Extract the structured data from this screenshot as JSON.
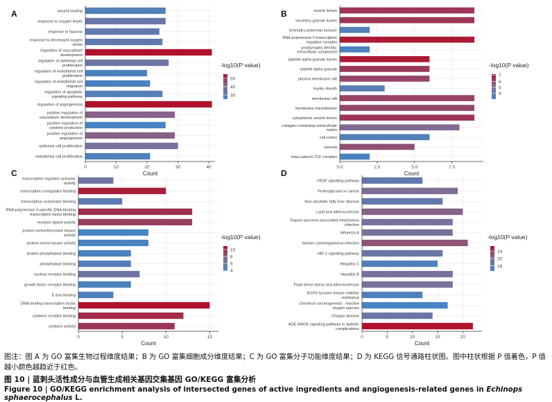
{
  "charts": [
    {
      "panel": "A",
      "legend_title": "-log10(P value)",
      "xlabel": "Count",
      "xticks": [
        0,
        10,
        20,
        30,
        40
      ],
      "xlim": [
        0,
        42
      ],
      "color_range": [
        25,
        55
      ],
      "legend_ticks": [
        50,
        40,
        30
      ],
      "categories": [
        "wound healing",
        "response to oxygen levels",
        "response to hypoxia",
        "response to decreased oxygen levels",
        "regulation of vasculature development",
        "regulation of epithelial cell proliferation",
        "regulation of endothelial cell proliferation",
        "regulation of endothelial cell migration",
        "regulation of apoptotic signaling pathway",
        "regulation of angiogenesis",
        "positive regulation of vasculature development",
        "positive regulation of cytokine production",
        "positive regulation of angiogenesis",
        "epithelial cell proliferation",
        "endothelial cell proliferation"
      ],
      "values": [
        26,
        26,
        24,
        25,
        41,
        27,
        20,
        21,
        25,
        41,
        29,
        26,
        29,
        30,
        21
      ],
      "colors": [
        30,
        35,
        33,
        33,
        55,
        36,
        28,
        28,
        30,
        55,
        42,
        27,
        42,
        38,
        29
      ]
    },
    {
      "panel": "B",
      "legend_title": "-log10(P value)",
      "xlabel": "Count",
      "xticks": [
        0.0,
        2.5,
        5.0,
        7.5
      ],
      "xlim": [
        0,
        9.6
      ],
      "color_range": [
        3,
        7.2
      ],
      "legend_ticks": [
        7,
        6,
        5,
        4
      ],
      "categories": [
        "vesicle lumen",
        "secretory granule lumen",
        "Schmidt-Lanterman incisure",
        "RNA polymerase II transcription regulator complex",
        "postsynaptic density, intracellular component",
        "platelet alpha granule lumen",
        "platelet alpha granule",
        "plasma membrane raft",
        "myelin sheath",
        "membrane raft",
        "membrane microdomain",
        "cytoplasmic vesicle lumen",
        "collagen-containing extracellular matrix",
        "cell cortex",
        "caveola",
        "beta-catenin-TCF complex"
      ],
      "values": [
        9,
        9,
        2,
        9,
        2,
        6,
        6,
        6,
        3,
        9,
        9,
        9,
        8,
        6,
        5,
        2
      ],
      "colors": [
        6.4,
        6.4,
        3.6,
        7.0,
        3.4,
        7.0,
        6.3,
        6.0,
        3.9,
        6.1,
        6.0,
        6.4,
        5.2,
        3.7,
        5.8,
        3.4
      ]
    },
    {
      "panel": "C",
      "legend_title": "-log10(P value)",
      "xlabel": "Count",
      "xticks": [
        0,
        5,
        10,
        15
      ],
      "xlim": [
        0,
        16
      ],
      "color_range": [
        3.8,
        11
      ],
      "legend_ticks": [
        10,
        8,
        6,
        4
      ],
      "categories": [
        "transcription regulator activator activity",
        "transcription coregulator binding",
        "transcription coactivator binding",
        "RNA polymerase II-specific DNA-binding transcription factor binding",
        "receptor ligand activity",
        "protein serine/threonine kinase activity",
        "protein serine kinase activity",
        "protein phosphatase binding",
        "phosphatase binding",
        "nuclear receptor binding",
        "growth factor receptor binding",
        "E-box binding",
        "DNA-binding transcription factor binding",
        "cytokine receptor binding",
        "cytokine activity"
      ],
      "values": [
        4,
        10,
        5,
        13,
        13,
        8,
        8,
        6,
        6,
        7,
        6,
        4,
        15,
        12,
        11
      ],
      "colors": [
        6.5,
        10.5,
        5.5,
        9.8,
        9.2,
        4.3,
        4.3,
        4.5,
        5.0,
        6.5,
        4.5,
        4.8,
        11.0,
        10.0,
        9.6
      ]
    },
    {
      "panel": "D",
      "legend_title": "-log10(P value)",
      "xlabel": "Count",
      "xticks": [
        0,
        5,
        10,
        15,
        20
      ],
      "xlim": [
        0,
        23.8
      ],
      "color_range": [
        13,
        27
      ],
      "legend_ticks": [
        24,
        20,
        16
      ],
      "categories": [
        "VEGF signaling pathway",
        "Proteoglycans in cancer",
        "Non-alcoholic fatty liver disease",
        "Lipid and atherosclerosis",
        "Kaposi sarcoma-associated herpesvirus infection",
        "Influenza A",
        "Human cytomegalovirus infection",
        "HIF-1 signaling pathway",
        "Hepatitis C",
        "Hepatitis B",
        "Fluid shear stress and atherosclerosis",
        "EGFR tyrosine kinase inhibitor resistance",
        "Chemical carcinogenesis - reactive oxygen species",
        "Chagas disease",
        "AGE-RAGE signaling pathway in diabetic complications"
      ],
      "values": [
        12,
        19,
        16,
        20,
        18,
        18,
        21,
        16,
        15,
        18,
        18,
        12,
        17,
        14,
        22
      ],
      "colors": [
        17,
        20,
        17,
        21,
        19,
        19,
        22,
        18,
        15,
        19,
        19,
        15,
        14,
        18,
        27
      ]
    }
  ],
  "caption": {
    "note": "图注：图 A 为 GO 富集生物过程维度结果；B 为 GO 富集细胞成分维度结果；C 为 GO 富集分子功能维度结果；D 为 KEGG 信号通路柱状图。图中柱状根据 P 值着色，P 值越小颜色越趋近于红色。",
    "title_zh": "图 10 | 蓝刺头活性成分与血管生成相关基因交集基因 GO/KEGG 富集分析",
    "title_en_prefix": "Figure 10  |  GO/KEGG enrichment analysis of intersected genes of active ingredients and angiogenesis-related genes in ",
    "title_en_species": "Echinops sphaerocephalus",
    "title_en_suffix": " L."
  },
  "colors": {
    "low": "#3e87c8",
    "mid": "#7f6f97",
    "high": "#b0112b",
    "panel_bg": "#ffffff",
    "grid": "#ebebeb",
    "axis": "#333333"
  }
}
